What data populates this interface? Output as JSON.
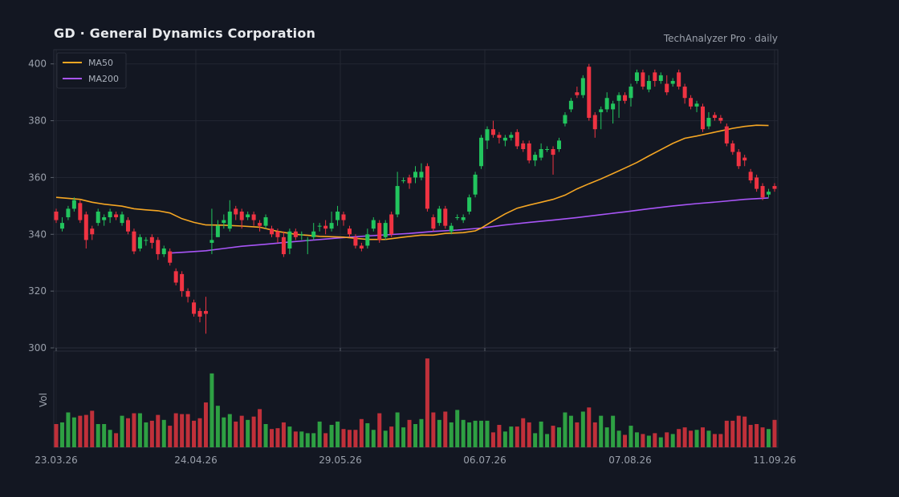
{
  "header": {
    "title": "GD  ·  General Dynamics Corporation",
    "subtitle": "TechAnalyzer Pro · daily"
  },
  "colors": {
    "up": "#22c55e",
    "down": "#ef3342",
    "ma50": "#f5a623",
    "ma200": "#a855f7",
    "vol_up": "#2ea043",
    "vol_down": "#c0303a"
  },
  "chart_data": {
    "type": "candlestick",
    "y_ticks": [
      "400",
      "380",
      "360",
      "340",
      "320",
      "300"
    ],
    "ylim": [
      300,
      405
    ],
    "x_ticks": [
      "23.03.26",
      "24.04.26",
      "29.05.26",
      "06.07.26",
      "07.08.26",
      "11.09.26"
    ],
    "volume_label": "Vol",
    "legend": [
      "MA50",
      "MA200"
    ],
    "grid": true,
    "legend_position": "top-left",
    "candles": [
      [
        348,
        345,
        349,
        344
      ],
      [
        342,
        344,
        346,
        341
      ],
      [
        346,
        349,
        350,
        345
      ],
      [
        349,
        352,
        353,
        348
      ],
      [
        351,
        345,
        352,
        344
      ],
      [
        347,
        338,
        348,
        335
      ],
      [
        342,
        340,
        343,
        338
      ],
      [
        344,
        348,
        349,
        343
      ],
      [
        345,
        346,
        347,
        343
      ],
      [
        346,
        348,
        349,
        344
      ],
      [
        347,
        346,
        348,
        345
      ],
      [
        344,
        347,
        348,
        343
      ],
      [
        345,
        341,
        346,
        340
      ],
      [
        341,
        334,
        342,
        333
      ],
      [
        335,
        339,
        340,
        334
      ],
      [
        338,
        338,
        339,
        336
      ],
      [
        339,
        337,
        340,
        335
      ],
      [
        338,
        333,
        339,
        331
      ],
      [
        333,
        335,
        336,
        332
      ],
      [
        334,
        330,
        335,
        329
      ],
      [
        327,
        323,
        328,
        322
      ],
      [
        326,
        320,
        327,
        318
      ],
      [
        320,
        318,
        321,
        316
      ],
      [
        316,
        312,
        317,
        311
      ],
      [
        313,
        311,
        314,
        309
      ],
      [
        313,
        312,
        318,
        305
      ],
      [
        337,
        338,
        349,
        333
      ],
      [
        339,
        343,
        345,
        339
      ],
      [
        344,
        345,
        347,
        342
      ],
      [
        342,
        348,
        352,
        341
      ],
      [
        349,
        347,
        350,
        345
      ],
      [
        348,
        345,
        349,
        342
      ],
      [
        346,
        347,
        348,
        345
      ],
      [
        347,
        345,
        348,
        343
      ],
      [
        344,
        343,
        345,
        341
      ],
      [
        343,
        346,
        347,
        342
      ],
      [
        342,
        340,
        343,
        339
      ],
      [
        341,
        339,
        342,
        337
      ],
      [
        339,
        333,
        341,
        332
      ],
      [
        335,
        341,
        342,
        333
      ],
      [
        341,
        339,
        342,
        338
      ],
      [
        340,
        340,
        341,
        338
      ],
      [
        338,
        338,
        339,
        333
      ],
      [
        339,
        341,
        344,
        338
      ],
      [
        343,
        343,
        344,
        341
      ],
      [
        343,
        342,
        345,
        340
      ],
      [
        342,
        344,
        348,
        341
      ],
      [
        345,
        348,
        350,
        343
      ],
      [
        347,
        345,
        348,
        343
      ],
      [
        342,
        340,
        343,
        339
      ],
      [
        339,
        336,
        340,
        335
      ],
      [
        336,
        335,
        337,
        334
      ],
      [
        336,
        340,
        342,
        335
      ],
      [
        342,
        345,
        346,
        341
      ],
      [
        344,
        338,
        345,
        337
      ],
      [
        339,
        344,
        345,
        338
      ],
      [
        347,
        340,
        348,
        339
      ],
      [
        347,
        357,
        362,
        346
      ],
      [
        359,
        359,
        360,
        358
      ],
      [
        360,
        358,
        361,
        356
      ],
      [
        360,
        362,
        364,
        358
      ],
      [
        360,
        362,
        365,
        359
      ],
      [
        364,
        349,
        365,
        348
      ],
      [
        346,
        342,
        347,
        341
      ],
      [
        344,
        349,
        350,
        343
      ],
      [
        349,
        343,
        350,
        342
      ],
      [
        341,
        343,
        344,
        340
      ],
      [
        346,
        346,
        347,
        345
      ],
      [
        345,
        346,
        347,
        344
      ],
      [
        348,
        353,
        354,
        347
      ],
      [
        354,
        361,
        362,
        353
      ],
      [
        364,
        374,
        375,
        363
      ],
      [
        373,
        377,
        378,
        370
      ],
      [
        377,
        375,
        380,
        374
      ],
      [
        375,
        374,
        376,
        372
      ],
      [
        373,
        374,
        375,
        371
      ],
      [
        374,
        375,
        376,
        373
      ],
      [
        376,
        371,
        377,
        370
      ],
      [
        372,
        370,
        373,
        369
      ],
      [
        372,
        366,
        373,
        365
      ],
      [
        366,
        368,
        369,
        364
      ],
      [
        367,
        370,
        372,
        366
      ],
      [
        370,
        370,
        371,
        369
      ],
      [
        370,
        368,
        371,
        361
      ],
      [
        370,
        373,
        374,
        369
      ],
      [
        379,
        382,
        383,
        378
      ],
      [
        384,
        387,
        388,
        383
      ],
      [
        390,
        389,
        392,
        388
      ],
      [
        389,
        395,
        396,
        388
      ],
      [
        399,
        381,
        400,
        380
      ],
      [
        382,
        377,
        383,
        374
      ],
      [
        383,
        384,
        385,
        377
      ],
      [
        384,
        388,
        390,
        383
      ],
      [
        384,
        386,
        387,
        379
      ],
      [
        387,
        389,
        390,
        381
      ],
      [
        389,
        387,
        390,
        386
      ],
      [
        388,
        392,
        393,
        385
      ],
      [
        394,
        397,
        398,
        393
      ],
      [
        397,
        392,
        398,
        391
      ],
      [
        391,
        394,
        396,
        390
      ],
      [
        397,
        394,
        398,
        392
      ],
      [
        394,
        396,
        397,
        393
      ],
      [
        393,
        390,
        396,
        389
      ],
      [
        393,
        394,
        395,
        392
      ],
      [
        397,
        392,
        398,
        391
      ],
      [
        392,
        388,
        393,
        386
      ],
      [
        388,
        385,
        389,
        384
      ],
      [
        385,
        386,
        387,
        383
      ],
      [
        385,
        377,
        386,
        376
      ],
      [
        378,
        381,
        383,
        377
      ],
      [
        382,
        381,
        383,
        380
      ],
      [
        381,
        380,
        382,
        379
      ],
      [
        378,
        372,
        379,
        371
      ],
      [
        372,
        369,
        373,
        368
      ],
      [
        369,
        364,
        370,
        363
      ],
      [
        367,
        366,
        368,
        364
      ],
      [
        362,
        359,
        363,
        358
      ],
      [
        360,
        356,
        361,
        355
      ],
      [
        357,
        353,
        358,
        352
      ],
      [
        354,
        355,
        356,
        353
      ],
      [
        357,
        356,
        358,
        355
      ]
    ],
    "ma50": [
      [
        0,
        353
      ],
      [
        4,
        352.3
      ],
      [
        6,
        351.3
      ],
      [
        8,
        350.6
      ],
      [
        11,
        349.9
      ],
      [
        13,
        349
      ],
      [
        15,
        348.6
      ],
      [
        17,
        348.3
      ],
      [
        19,
        347.5
      ],
      [
        21,
        345.5
      ],
      [
        23,
        344.2
      ],
      [
        25,
        343.3
      ],
      [
        28,
        343.2
      ],
      [
        31,
        342.9
      ],
      [
        34,
        342.5
      ],
      [
        37,
        341
      ],
      [
        40,
        340
      ],
      [
        44,
        339.3
      ],
      [
        48,
        339
      ],
      [
        52,
        338.2
      ],
      [
        55,
        338.2
      ],
      [
        58,
        339
      ],
      [
        61,
        339.7
      ],
      [
        63,
        339.7
      ],
      [
        65,
        340.3
      ],
      [
        68,
        340.6
      ],
      [
        70,
        341.2
      ],
      [
        71,
        342.2
      ],
      [
        73,
        344.8
      ],
      [
        75,
        347.2
      ],
      [
        77,
        349.2
      ],
      [
        79,
        350.3
      ],
      [
        81,
        351.3
      ],
      [
        83,
        352.3
      ],
      [
        85,
        353.8
      ],
      [
        87,
        356
      ],
      [
        89,
        357.8
      ],
      [
        91,
        359.5
      ],
      [
        93,
        361.4
      ],
      [
        95,
        363.3
      ],
      [
        97,
        365.3
      ],
      [
        99,
        367.6
      ],
      [
        101,
        369.8
      ],
      [
        103,
        372
      ],
      [
        105,
        373.8
      ],
      [
        107,
        374.6
      ],
      [
        109,
        375.5
      ],
      [
        111,
        376.4
      ],
      [
        113,
        377.3
      ],
      [
        115,
        378
      ],
      [
        117,
        378.4
      ],
      [
        119,
        378.3
      ]
    ],
    "ma200": [
      [
        19,
        333.4
      ],
      [
        22,
        333.8
      ],
      [
        25,
        334.2
      ],
      [
        28,
        335
      ],
      [
        31,
        335.8
      ],
      [
        35,
        336.5
      ],
      [
        39,
        337.3
      ],
      [
        43,
        338
      ],
      [
        47,
        338.7
      ],
      [
        51,
        339.3
      ],
      [
        55,
        339.8
      ],
      [
        59,
        340.3
      ],
      [
        63,
        341
      ],
      [
        67,
        341.5
      ],
      [
        71,
        342.2
      ],
      [
        75,
        343.3
      ],
      [
        79,
        344.2
      ],
      [
        83,
        345
      ],
      [
        87,
        345.9
      ],
      [
        91,
        346.9
      ],
      [
        95,
        347.9
      ],
      [
        99,
        349
      ],
      [
        103,
        350
      ],
      [
        107,
        350.8
      ],
      [
        111,
        351.5
      ],
      [
        115,
        352.3
      ],
      [
        119,
        352.8
      ]
    ],
    "volume": [
      28,
      30,
      42,
      36,
      38,
      39,
      44,
      28,
      28,
      21,
      17,
      38,
      35,
      41,
      41,
      30,
      32,
      39,
      33,
      26,
      41,
      40,
      40,
      32,
      35,
      54,
      89,
      50,
      36,
      40,
      31,
      38,
      33,
      37,
      46,
      28,
      22,
      23,
      30,
      25,
      19,
      19,
      17,
      17,
      31,
      17,
      27,
      31,
      22,
      21,
      21,
      34,
      29,
      21,
      41,
      20,
      25,
      42,
      24,
      33,
      28,
      34,
      107,
      42,
      33,
      43,
      30,
      45,
      33,
      30,
      32,
      32,
      32,
      18,
      27,
      19,
      25,
      25,
      35,
      30,
      17,
      31,
      16,
      26,
      24,
      42,
      38,
      30,
      43,
      48,
      30,
      38,
      24,
      38,
      20,
      15,
      26,
      18,
      16,
      14,
      17,
      12,
      18,
      16,
      22,
      24,
      20,
      21,
      24,
      20,
      16,
      16,
      32,
      32,
      38,
      37,
      27,
      28,
      24,
      22,
      33
    ]
  }
}
